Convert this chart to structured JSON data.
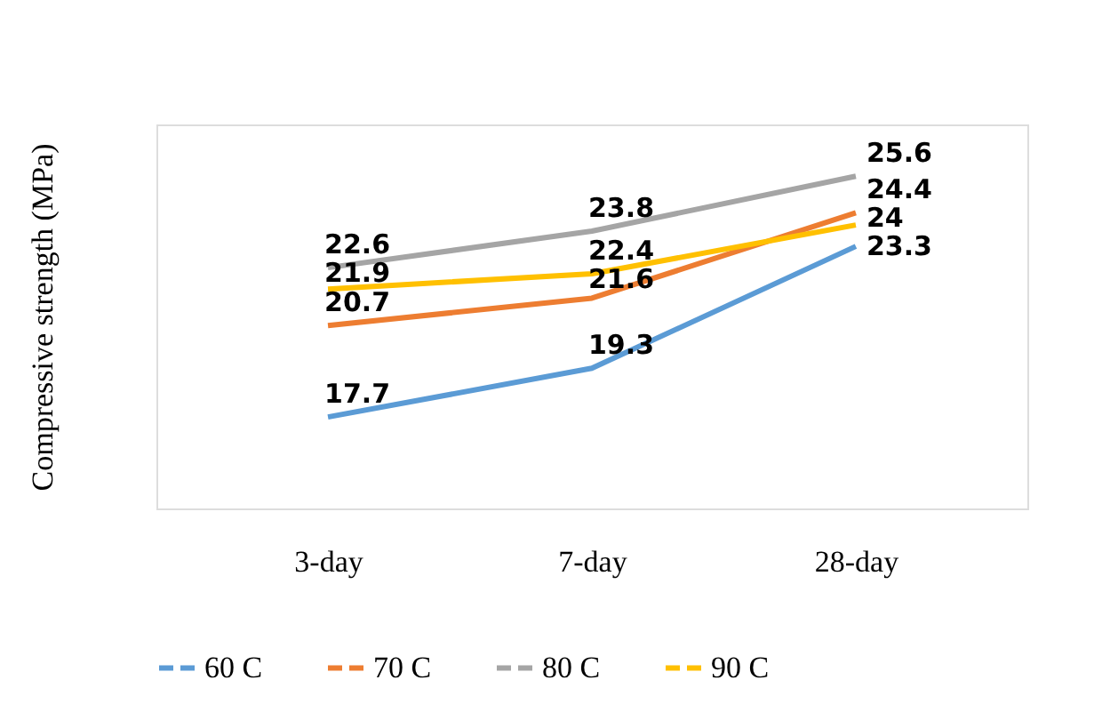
{
  "chart_data": {
    "type": "line",
    "ylabel": "Compressive strength (MPa)",
    "categories": [
      "3-day",
      "7-day",
      "28-day"
    ],
    "series": [
      {
        "name": "60 C",
        "color": "#5b9bd5",
        "values": [
          17.7,
          19.3,
          23.3
        ]
      },
      {
        "name": "70 C",
        "color": "#ed7d31",
        "values": [
          20.7,
          21.6,
          24.4
        ]
      },
      {
        "name": "80 C",
        "color": "#a5a5a5",
        "values": [
          22.6,
          23.8,
          25.6
        ]
      },
      {
        "name": "90 C",
        "color": "#ffc000",
        "values": [
          21.9,
          22.4,
          24
        ]
      }
    ],
    "ylim": [
      14.7,
      27.3
    ],
    "data_labels": true,
    "grid": false,
    "legend": "bottom",
    "marker": "none",
    "line_style": "solid",
    "tick_labels": "x"
  }
}
